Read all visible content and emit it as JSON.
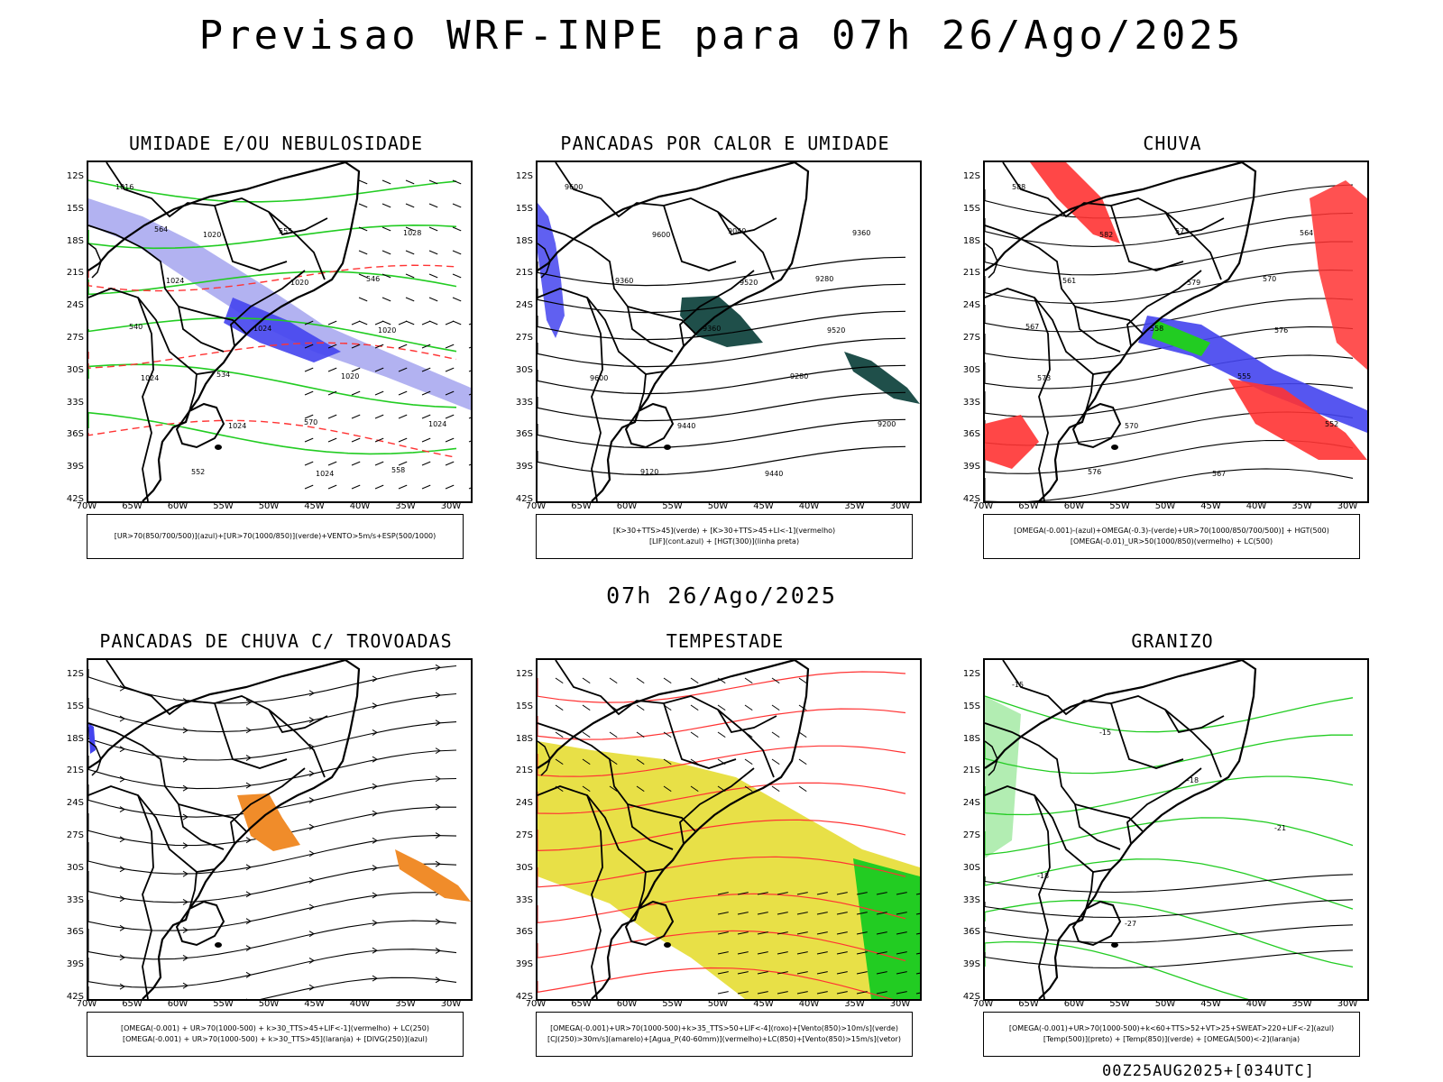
{
  "title": "Previsao WRF-INPE  para 07h 26/Ago/2025",
  "subtitle": "07h 26/Ago/2025",
  "footer": "00Z25AUG2025+[034UTC]",
  "lat_ticks": [
    "12S",
    "15S",
    "18S",
    "21S",
    "24S",
    "27S",
    "30S",
    "33S",
    "36S",
    "39S",
    "42S"
  ],
  "lon_ticks": [
    "70W",
    "65W",
    "60W",
    "55W",
    "50W",
    "45W",
    "40W",
    "35W",
    "30W"
  ],
  "colors": {
    "green": "#22cc22",
    "red": "#ff3333",
    "blue": "#4444ee",
    "light_blue": "#aaaaf0",
    "dark_teal": "#1f4f4a",
    "orange": "#f08c2a",
    "yellow": "#e6dd33",
    "black": "#000000"
  },
  "panels": [
    {
      "title": "UMIDADE E/OU NEBULOSIDADE",
      "legend": [
        "[UR>70(850/700/500)](azul)+[UR>70(1000/850)](verde)+VENTO>5m/s+ESP(500/1000)"
      ],
      "contour_labels": [
        "1016",
        "1020",
        "1020",
        "1020",
        "1024",
        "1024",
        "1024",
        "1028",
        "1024",
        "1024",
        "1020",
        "1024",
        "552",
        "555",
        "546",
        "540",
        "534",
        "570",
        "558",
        "564"
      ]
    },
    {
      "title": "PANCADAS POR CALOR E UMIDADE",
      "legend": [
        "[K>30+TTS>45](verde) + [K>30+TTS>45+LI<-1](vermelho)",
        "[LIF](cont.azul) + [HGT(300)](linha preta)"
      ],
      "contour_labels": [
        "9600",
        "9600",
        "9520",
        "9520",
        "9600",
        "9440",
        "9440",
        "9360",
        "9360",
        "9360",
        "9280",
        "9200",
        "9120",
        "9040",
        "9280"
      ]
    },
    {
      "title": "CHUVA",
      "legend": [
        "[OMEGA(-0.001)-(azul)+OMEGA(-0.3)-(verde)+UR>70(1000/850/700/500)] + HGT(500)",
        "[OMEGA(-0.01)_UR>50(1000/850)(vermelho) + LC(500)"
      ],
      "contour_labels": [
        "588",
        "582",
        "579",
        "576",
        "573",
        "570",
        "567",
        "564",
        "561",
        "558",
        "555",
        "552",
        "576",
        "573",
        "570",
        "567"
      ]
    },
    {
      "title": "PANCADAS DE CHUVA C/ TROVOADAS",
      "legend": [
        "[OMEGA(-0.001) + UR>70(1000-500) + k>30_TTS>45+LIF<-1](vermelho) + LC(250)",
        "[OMEGA(-0.001) + UR>70(1000-500) + k>30_TTS>45](laranja) + [DIVG(250)](azul)"
      ],
      "contour_labels": []
    },
    {
      "title": "TEMPESTADE",
      "legend": [
        "[OMEGA(-0.001)+UR>70(1000-500)+k>35_TTS>50+LIF<-4](roxo)+[Vento(850)>10m/s](verde)",
        "[CJ(250)>30m/s](amarelo)+[Agua_P(40-60mm)](vermelho)+LC(850)+[Vento(850)>15m/s](vetor)"
      ],
      "contour_labels": []
    },
    {
      "title": "GRANIZO",
      "legend": [
        "[OMEGA(-0.001)+UR>70(1000-500)+k<60+TTS>52+VT>25+SWEAT>220+LIF<-2](azul)",
        "[Temp(500)](preto) + [Temp(850)](verde) + [OMEGA(500)<-2](laranja)"
      ],
      "contour_labels": [
        "-15",
        "-15",
        "-18",
        "-21",
        "-18",
        "-27"
      ]
    }
  ]
}
